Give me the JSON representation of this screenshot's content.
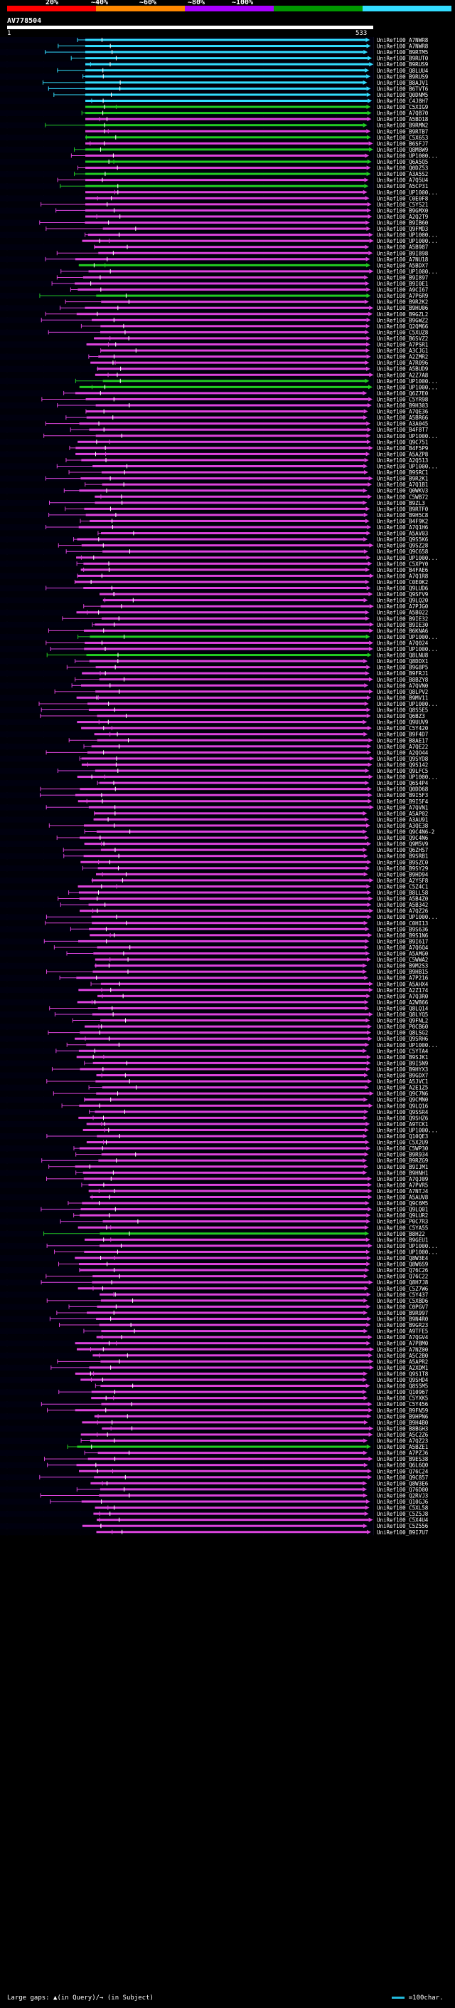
{
  "colorbar": {
    "labels": [
      "20%",
      "~40%",
      "~60%",
      "~80%",
      "~100%"
    ],
    "colors": [
      "#ff0000",
      "#ff8800",
      "#aa00ff",
      "#009900",
      "#33ddff"
    ]
  },
  "query": {
    "name": "AV778504",
    "start": "1",
    "end": "533"
  },
  "hits": [
    "UniRef100_A7NWR8",
    "UniRef100_A7NWR8",
    "UniRef100_B9RTM5",
    "UniRef100_B9RUT0",
    "UniRef100_B9RUS9",
    "UniRef100_Q8LUU4",
    "UniRef100_B9RUS9",
    "UniRef100_B8AJV1",
    "UniRef100_B6TVT6",
    "UniRef100_Q0DNM5",
    "UniRef100_C4J8H7",
    "UniRef100_C5XIG9",
    "UniRef100_A7QB70",
    "UniRef100_A5BD18",
    "UniRef100_B9RMN2",
    "UniRef100_B9RTB7",
    "UniRef100_C5X6S3",
    "UniRef100_B6SFJ7",
    "UniRef100_Q8M8W9",
    "UniRef100_UP1000...",
    "UniRef100_Q6A5Q5",
    "UniRef100_Q0DZ53",
    "UniRef100_A3A5S2",
    "UniRef100_A7Q5U4",
    "UniRef100_A5CP31",
    "UniRef100_UP1000...",
    "UniRef100_C0E0F8",
    "UniRef100_C5YS21",
    "UniRef100_B9GMX0",
    "UniRef100_A2Q2T9",
    "UniRef100_B9IB60",
    "UniRef100_Q9FMD3",
    "UniRef100_UP1000...",
    "UniRef100_UP1000...",
    "UniRef100_A5B987",
    "UniRef100_B9I898",
    "UniRef100_A7NU18",
    "UniRef100_A5BDX7",
    "UniRef100_UP1000...",
    "UniRef100_B9I897",
    "UniRef100_B9I0E1",
    "UniRef100_A9CI67",
    "UniRef100_A7P6R9",
    "UniRef100_B9R2K2",
    "UniRef100_B9HU06",
    "UniRef100_B9GZL2",
    "UniRef100_B9GWZ2",
    "UniRef100_Q2QM66",
    "UniRef100_C5XUZ8",
    "UniRef100_B6SVZ2",
    "UniRef100_A7PSR1",
    "UniRef100_A3CJG1",
    "UniRef100_A2ZMR2",
    "UniRef100_A7R096",
    "UniRef100_A5BUD9",
    "UniRef100_A2Z7A8",
    "UniRef100_UP1000...",
    "UniRef100_UP1000...",
    "UniRef100_Q6Z7E0",
    "UniRef100_C5YR98",
    "UniRef100_B9H303",
    "UniRef100_A7QE36",
    "UniRef100_A5BR66",
    "UniRef100_A3A045",
    "UniRef100_B4F8T7",
    "UniRef100_UP1000...",
    "UniRef100_Q9C751",
    "UniRef100_B4F5P9",
    "UniRef100_A5AZP8",
    "UniRef100_A2Q513",
    "UniRef100_UP1000...",
    "UniRef100_B9SRC1",
    "UniRef100_B9R2K1",
    "UniRef100_A7Q1B1",
    "UniRef100_Q0WKV3",
    "UniRef100_C5WB72",
    "UniRef100_B9ZL3",
    "UniRef100_B9RTF0",
    "UniRef100_B9H5C8",
    "UniRef100_B4F9K2",
    "UniRef100_A7Q1H6",
    "UniRef100_A5AV03",
    "UniRef100_Q9S5K6",
    "UniRef100_Q9SZ28",
    "UniRef100_Q9C658",
    "UniRef100_UP1000...",
    "UniRef100_C5XPY0",
    "UniRef100_B4FAE6",
    "UniRef100_A7Q1R8",
    "UniRef100_C0E0K2",
    "UniRef100_Q9LUD6",
    "UniRef100_Q9SFV9",
    "UniRef100_Q9LQ20",
    "UniRef100_A7PJG0",
    "UniRef100_A5B022",
    "UniRef100_B9IE32",
    "UniRef100_B9IE30",
    "UniRef100_B6KNA6",
    "UniRef100_UP1000...",
    "UniRef100_A7Q024",
    "UniRef100_UP1000...",
    "UniRef100_Q8LNU8",
    "UniRef100_Q8DDX1",
    "UniRef100_B9G8P5",
    "UniRef100_B9FRJ1",
    "UniRef100_B8BZY8",
    "UniRef100_A7QVN0",
    "UniRef100_Q8LPV2",
    "UniRef100_B9MV11",
    "UniRef100_UP1000...",
    "UniRef100_Q8S5E5",
    "UniRef100_Q6BZ3",
    "UniRef100_Q9UUV9",
    "UniRef100_C5Y420",
    "UniRef100_B9F4D7",
    "UniRef100_B8AE17",
    "UniRef100_A7QE22",
    "UniRef100_A2QO44",
    "UniRef100_Q9SYD8",
    "UniRef100_Q9S142",
    "UniRef100_Q9LFC5",
    "UniRef100_UP1000...",
    "UniRef100_Q6S4P4",
    "UniRef100_Q0DD68",
    "UniRef100_B9I5F3",
    "UniRef100_B9I5F4",
    "UniRef100_A7QVN1",
    "UniRef100_A5AP02",
    "UniRef100_A3AU91",
    "UniRef100_A3QE38",
    "UniRef100_Q9C4N6-2",
    "UniRef100_Q9C4N6",
    "UniRef100_Q9M5V9",
    "UniRef100_Q6ZHS7",
    "UniRef100_B9SRB1",
    "UniRef100_B9SZC0",
    "UniRef100_B9SY29",
    "UniRef100_B9HD94",
    "UniRef100_A2YSF8",
    "UniRef100_C5Z4C1",
    "UniRef100_B8LL58",
    "UniRef100_A5B4Z0",
    "UniRef100_A5B342",
    "UniRef100_A7QZ26",
    "UniRef100_UP1000...",
    "UniRef100_C0HI13",
    "UniRef100_B9S636",
    "UniRef100_B9S1N6",
    "UniRef100_B9I617",
    "UniRef100_A7Q6Q4",
    "UniRef100_A5AMG0",
    "UniRef100_C5WWA2",
    "UniRef100_B9M2S3",
    "UniRef100_B9HB15",
    "UniRef100_A7P216",
    "UniRef100_A5AHX4",
    "UniRef100_A2Z174",
    "UniRef100_A7Q3R0",
    "UniRef100_A2W866",
    "UniRef100_Q8LQ14",
    "UniRef100_Q8LYQ5",
    "UniRef100_Q9FNL2",
    "UniRef100_P0CB60",
    "UniRef100_Q8LSG2",
    "UniRef100_Q9SRH6",
    "UniRef100_UP1000...",
    "UniRef100_C5YTA4",
    "UniRef100_B9SJK1",
    "UniRef100_B9I5N9",
    "UniRef100_B9HYX3",
    "UniRef100_B9GDX7",
    "UniRef100_A5JVC1",
    "UniRef100_A2E1Z5",
    "UniRef100_Q9C7N6",
    "UniRef100_Q9CMN0",
    "UniRef100_Q9LQ16",
    "UniRef100_Q9SSR4",
    "UniRef100_Q9SHZ6",
    "UniRef100_A9TCK1",
    "UniRef100_UP1000...",
    "UniRef100_Q10QE3",
    "UniRef100_C5X2U9",
    "UniRef100_C5WP30",
    "UniRef100_B9R934",
    "UniRef100_B9RZG9",
    "UniRef100_B9IJM1",
    "UniRef100_B9HNH1",
    "UniRef100_A7QJ09",
    "UniRef100_A7PVR5",
    "UniRef100_A7NTJ4",
    "UniRef100_A5AUV8",
    "UniRef100_Q9C6M5",
    "UniRef100_Q9LQ01",
    "UniRef100_Q9LUR2",
    "UniRef100_P0C7R3",
    "UniRef100_C5YA55",
    "UniRef100_B8H22",
    "UniRef100_B9GEU1",
    "UniRef100_UP1000...",
    "UniRef100_UP1000...",
    "UniRef100_Q8W3E4",
    "UniRef100_Q8W6S9",
    "UniRef100_Q76C26",
    "UniRef100_Q76C22",
    "UniRef100_Q8H7J8",
    "UniRef100_C5Z7W6",
    "UniRef100_C5Y437",
    "UniRef100_C5XBD6",
    "UniRef100_C0PGV7",
    "UniRef100_B9R997",
    "UniRef100_B9N4R0",
    "UniRef100_B9GR23",
    "UniRef100_A9TFE5",
    "UniRef100_A7QGV4",
    "UniRef100_A7PBM0",
    "UniRef100_A7NZ00",
    "UniRef100_A5C2B0",
    "UniRef100_A5APR2",
    "UniRef100_A2XDM1",
    "UniRef100_Q9S1T8",
    "UniRef100_Q9SHD4",
    "UniRef100_Q8S5M5",
    "UniRef100_Q10967",
    "UniRef100_C5YXK5",
    "UniRef100_C5Y456",
    "UniRef100_B9FN59",
    "UniRef100_B9HPN6",
    "UniRef100_B9H4B0",
    "UniRef100_B8BGH3",
    "UniRef100_A5C2Z6",
    "UniRef100_A7QZ23",
    "UniRef100_A5BZE1",
    "UniRef100_A7PZJ6",
    "UniRef100_B9ES38",
    "UniRef100_Q6L6Q0",
    "UniRef100_Q76C24",
    "UniRef100_Q9C857",
    "UniRef100_Q8W3E6",
    "UniRef100_Q76D00",
    "UniRef100_Q2RVJ3",
    "UniRef100_Q10GJ6",
    "UniRef100_C5XL58",
    "UniRef100_C5Z5J8",
    "UniRef100_C5X4U4",
    "UniRef100_C5Z556",
    "UniRef100_B9I7U7"
  ],
  "footer": {
    "gaps_text": "Large gaps: ▲(in Query)/→ (in Subject)",
    "scale_text": "=100char."
  }
}
